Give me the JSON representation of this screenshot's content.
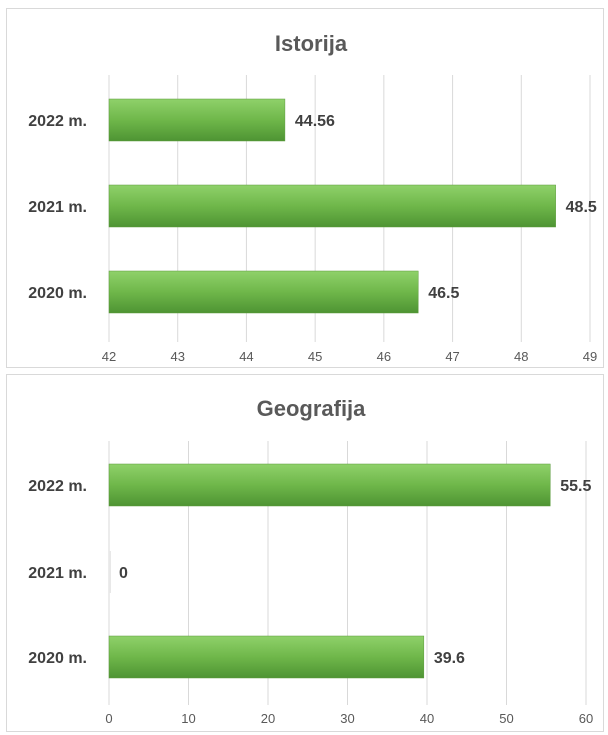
{
  "chart_data": [
    {
      "type": "bar",
      "orientation": "horizontal",
      "title": "Istorija",
      "categories": [
        "2022 m.",
        "2021 m.",
        "2020 m."
      ],
      "values": [
        44.56,
        48.5,
        46.5
      ],
      "value_labels": [
        "44.56",
        "48.5",
        "46.5"
      ],
      "xlim": [
        42,
        49
      ],
      "ticks": [
        42,
        43,
        44,
        45,
        46,
        47,
        48,
        49
      ],
      "grid": true,
      "bar_color": "#70ad47"
    },
    {
      "type": "bar",
      "orientation": "horizontal",
      "title": "Geografija",
      "categories": [
        "2022 m.",
        "2021 m.",
        "2020 m."
      ],
      "values": [
        55.5,
        0,
        39.6
      ],
      "value_labels": [
        "55.5",
        "0",
        "39.6"
      ],
      "xlim": [
        0,
        60
      ],
      "ticks": [
        0,
        10,
        20,
        30,
        40,
        50,
        60
      ],
      "grid": true,
      "bar_color": "#70ad47"
    }
  ]
}
